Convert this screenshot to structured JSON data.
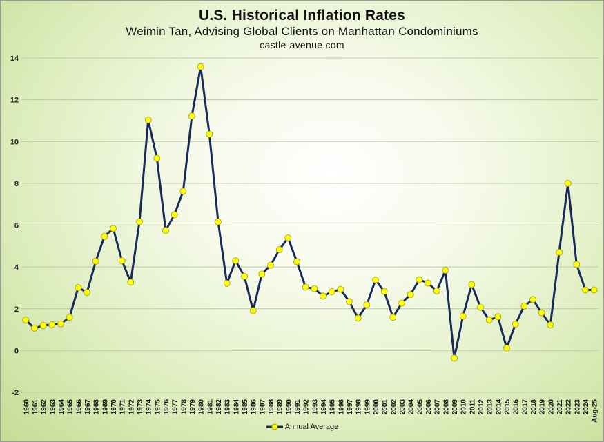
{
  "chart_data": {
    "type": "line",
    "title": "U.S. Historical Inflation Rates",
    "subtitle": "Weimin Tan, Advising Global Clients on Manhattan Condominiums",
    "source": "castle-avenue.com",
    "categories": [
      "1960",
      "1961",
      "1962",
      "1963",
      "1964",
      "1965",
      "1966",
      "1967",
      "1968",
      "1969",
      "1970",
      "1971",
      "1972",
      "1973",
      "1974",
      "1975",
      "1976",
      "1977",
      "1978",
      "1979",
      "1980",
      "1981",
      "1982",
      "1983",
      "1984",
      "1985",
      "1986",
      "1987",
      "1988",
      "1989",
      "1990",
      "1991",
      "1992",
      "1993",
      "1994",
      "1995",
      "1996",
      "1997",
      "1998",
      "1999",
      "2000",
      "2001",
      "2002",
      "2003",
      "2004",
      "2005",
      "2006",
      "2007",
      "2008",
      "2009",
      "2010",
      "2011",
      "2012",
      "2013",
      "2014",
      "2015",
      "2016",
      "2017",
      "2018",
      "2019",
      "2020",
      "2021",
      "2022",
      "2023",
      "2024",
      "Aug-25"
    ],
    "series": [
      {
        "name": "Annual Average",
        "values": [
          1.46,
          1.07,
          1.2,
          1.24,
          1.28,
          1.59,
          3.01,
          2.78,
          4.27,
          5.46,
          5.84,
          4.3,
          3.27,
          6.16,
          11.03,
          9.2,
          5.75,
          6.5,
          7.62,
          11.22,
          13.58,
          10.35,
          6.16,
          3.22,
          4.3,
          3.55,
          1.91,
          3.66,
          4.08,
          4.83,
          5.39,
          4.25,
          3.03,
          2.96,
          2.61,
          2.81,
          2.93,
          2.34,
          1.55,
          2.19,
          3.38,
          2.83,
          1.59,
          2.27,
          2.68,
          3.39,
          3.23,
          2.85,
          3.84,
          -0.36,
          1.64,
          3.16,
          2.07,
          1.46,
          1.62,
          0.12,
          1.26,
          2.13,
          2.44,
          1.81,
          1.23,
          4.7,
          8.0,
          4.12,
          2.9,
          2.9
        ],
        "line_color": "#172a5a",
        "marker_color": "#ffff00"
      }
    ],
    "ylim": [
      -2,
      14
    ],
    "yticks": [
      "-2",
      "0",
      "2",
      "4",
      "6",
      "8",
      "10",
      "12",
      "14"
    ],
    "grid": true,
    "legend": "bottom-center",
    "xlabel": "",
    "ylabel": ""
  }
}
